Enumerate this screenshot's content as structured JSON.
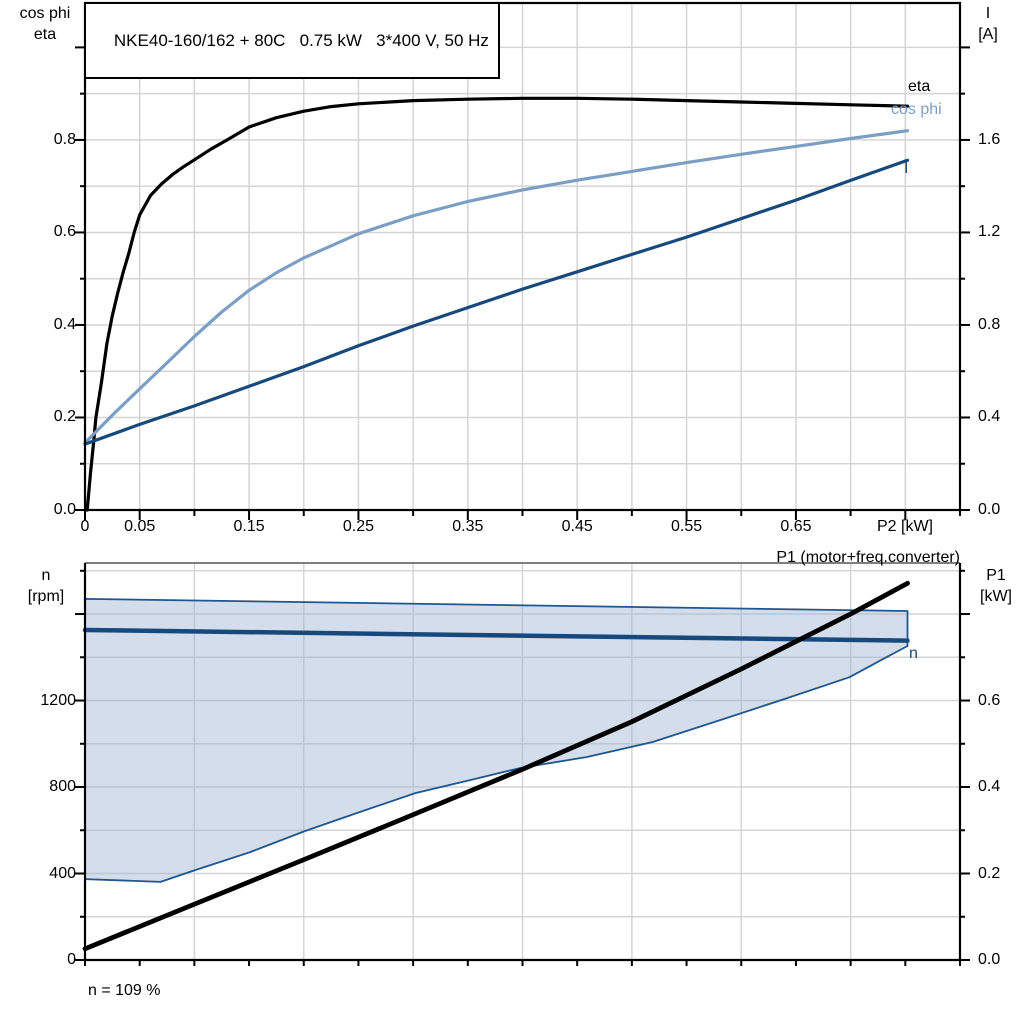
{
  "colors": {
    "black": "#000000",
    "dark_blue": "#17497c",
    "light_blue": "#7d9ec4",
    "region_fill": "#9db4d2",
    "region_stroke": "#1f568f",
    "grid": "#d4d4d4",
    "frame_gray": "#7f7f7f"
  },
  "chart_data": [
    {
      "type": "line",
      "panel": "top",
      "title": "NKE40-160/162 + 80C   0.75 kW   3*400 V, 50 Hz",
      "xlabel": "P2 [kW]",
      "x_range": [
        0,
        0.8
      ],
      "x_grid": [
        0.05,
        0.75,
        0.05
      ],
      "x_tick_step": 0.05,
      "x_tick_labels": [
        [
          "0",
          0
        ],
        [
          "0.05",
          0.05
        ],
        [
          "0.15",
          0.15
        ],
        [
          "0.25",
          0.25
        ],
        [
          "0.35",
          0.35
        ],
        [
          "0.45",
          0.45
        ],
        [
          "0.55",
          0.55
        ],
        [
          "0.65",
          0.65
        ]
      ],
      "y_left": {
        "label": [
          "cos phi",
          "eta"
        ],
        "range": [
          0,
          1.096
        ],
        "grid": [
          0.1,
          1.0,
          0.1
        ],
        "tick_step": 0.1,
        "tick_labels": [
          [
            "0.0",
            0
          ],
          [
            "0.2",
            0.2
          ],
          [
            "0.4",
            0.4
          ],
          [
            "0.6",
            0.6
          ],
          [
            "0.8",
            0.8
          ]
        ]
      },
      "y_right": {
        "label": [
          "I",
          "[A]"
        ],
        "range": [
          0,
          2.192
        ],
        "tick_step": 0.2,
        "tick_labels": [
          [
            "0.0",
            0
          ],
          [
            "0.4",
            0.4
          ],
          [
            "0.8",
            0.8
          ],
          [
            "1.2",
            1.2
          ],
          [
            "1.6",
            1.6
          ]
        ]
      },
      "series": [
        {
          "id": "eta",
          "label": "eta",
          "axis": "left",
          "color": "black",
          "width": 3.2,
          "points": [
            [
              0.002,
              0
            ],
            [
              0.005,
              0.08
            ],
            [
              0.008,
              0.15
            ],
            [
              0.01,
              0.2
            ],
            [
              0.015,
              0.275
            ],
            [
              0.02,
              0.36
            ],
            [
              0.025,
              0.42
            ],
            [
              0.03,
              0.47
            ],
            [
              0.035,
              0.515
            ],
            [
              0.04,
              0.555
            ],
            [
              0.045,
              0.6
            ],
            [
              0.05,
              0.638
            ],
            [
              0.06,
              0.68
            ],
            [
              0.07,
              0.705
            ],
            [
              0.08,
              0.725
            ],
            [
              0.09,
              0.742
            ],
            [
              0.1,
              0.757
            ],
            [
              0.115,
              0.78
            ],
            [
              0.13,
              0.8
            ],
            [
              0.15,
              0.828
            ],
            [
              0.175,
              0.848
            ],
            [
              0.2,
              0.862
            ],
            [
              0.225,
              0.872
            ],
            [
              0.25,
              0.878
            ],
            [
              0.3,
              0.885
            ],
            [
              0.35,
              0.888
            ],
            [
              0.4,
              0.89
            ],
            [
              0.45,
              0.89
            ],
            [
              0.5,
              0.888
            ],
            [
              0.55,
              0.885
            ],
            [
              0.6,
              0.882
            ],
            [
              0.65,
              0.879
            ],
            [
              0.7,
              0.876
            ],
            [
              0.752,
              0.873
            ]
          ]
        },
        {
          "id": "cos-phi",
          "label": "cos phi",
          "axis": "left",
          "color": "light_blue",
          "width": 3.2,
          "points": [
            [
              0,
              0.145
            ],
            [
              0.025,
              0.205
            ],
            [
              0.05,
              0.262
            ],
            [
              0.075,
              0.318
            ],
            [
              0.1,
              0.375
            ],
            [
              0.125,
              0.428
            ],
            [
              0.15,
              0.475
            ],
            [
              0.175,
              0.513
            ],
            [
              0.2,
              0.545
            ],
            [
              0.25,
              0.597
            ],
            [
              0.3,
              0.636
            ],
            [
              0.35,
              0.667
            ],
            [
              0.4,
              0.692
            ],
            [
              0.45,
              0.713
            ],
            [
              0.5,
              0.732
            ],
            [
              0.55,
              0.751
            ],
            [
              0.6,
              0.769
            ],
            [
              0.65,
              0.786
            ],
            [
              0.7,
              0.803
            ],
            [
              0.752,
              0.82
            ]
          ]
        },
        {
          "id": "current",
          "label": "I",
          "axis": "right",
          "color": "dark_blue",
          "width": 3.2,
          "points": [
            [
              0,
              0.285
            ],
            [
              0.05,
              0.37
            ],
            [
              0.1,
              0.45
            ],
            [
              0.15,
              0.535
            ],
            [
              0.2,
              0.62
            ],
            [
              0.25,
              0.71
            ],
            [
              0.3,
              0.795
            ],
            [
              0.35,
              0.875
            ],
            [
              0.4,
              0.955
            ],
            [
              0.45,
              1.03
            ],
            [
              0.5,
              1.105
            ],
            [
              0.55,
              1.18
            ],
            [
              0.6,
              1.26
            ],
            [
              0.65,
              1.34
            ],
            [
              0.7,
              1.425
            ],
            [
              0.752,
              1.512
            ]
          ]
        }
      ]
    },
    {
      "type": "line",
      "panel": "bottom",
      "annotation": "n = 109 %",
      "x_range": [
        0,
        0.8
      ],
      "x_grid": [
        0.1,
        0.7,
        0.1
      ],
      "x_tick_step": 0.05,
      "y_left": {
        "label": [
          "n",
          "[rpm]"
        ],
        "range": [
          0,
          1836
        ],
        "grid": [
          200,
          1800,
          200
        ],
        "tick_step": 200,
        "tick_labels": [
          [
            "0",
            0
          ],
          [
            "400",
            400
          ],
          [
            "800",
            800
          ],
          [
            "1200",
            1200
          ]
        ]
      },
      "y_right": {
        "label": [
          "P1",
          "[kW]"
        ],
        "range": [
          0,
          0.918
        ],
        "tick_step": 0.1,
        "tick_labels": [
          [
            "0.0",
            0
          ],
          [
            "0.2",
            0.2
          ],
          [
            "0.4",
            0.4
          ],
          [
            "0.6",
            0.6
          ]
        ]
      },
      "region": {
        "id": "speed-range",
        "upper": [
          [
            0,
            1670
          ],
          [
            0.752,
            1614
          ]
        ],
        "lower": [
          [
            0,
            374
          ],
          [
            0.069,
            361
          ],
          [
            0.101,
            416
          ],
          [
            0.151,
            499
          ],
          [
            0.201,
            596
          ],
          [
            0.251,
            684
          ],
          [
            0.302,
            772
          ],
          [
            0.352,
            832
          ],
          [
            0.398,
            888
          ],
          [
            0.459,
            939
          ],
          [
            0.519,
            1008
          ],
          [
            0.581,
            1110
          ],
          [
            0.642,
            1211
          ],
          [
            0.699,
            1308
          ],
          [
            0.733,
            1401
          ],
          [
            0.752,
            1452
          ]
        ]
      },
      "series": [
        {
          "id": "n-curve",
          "label": "n",
          "axis": "left",
          "color": "dark_blue",
          "width": 4.5,
          "points": [
            [
              0,
              1526
            ],
            [
              0.752,
              1477
            ]
          ]
        },
        {
          "id": "p1-curve",
          "label": "P1 (motor+freq.converter)",
          "axis": "right",
          "color": "black",
          "width": 4.8,
          "points": [
            [
              0,
              0.026
            ],
            [
              0.1,
              0.129
            ],
            [
              0.2,
              0.232
            ],
            [
              0.3,
              0.336
            ],
            [
              0.4,
              0.441
            ],
            [
              0.5,
              0.551
            ],
            [
              0.6,
              0.673
            ],
            [
              0.7,
              0.8
            ],
            [
              0.752,
              0.871
            ]
          ]
        }
      ]
    }
  ]
}
